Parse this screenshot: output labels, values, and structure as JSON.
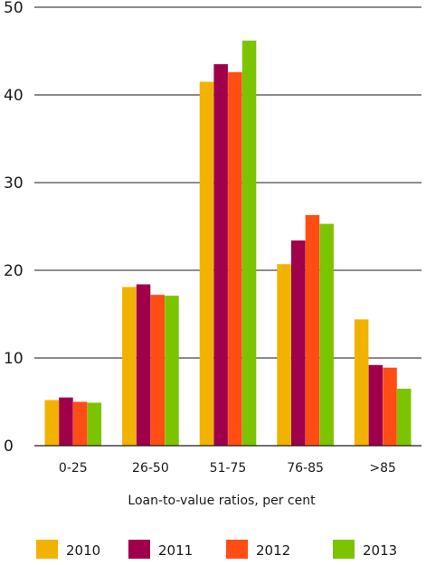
{
  "chart_data": {
    "type": "bar",
    "title": "",
    "xlabel": "Loan-to-value ratios, per cent",
    "ylabel": "",
    "ylim": [
      0,
      50
    ],
    "yticks": [
      0,
      10,
      20,
      30,
      40,
      50
    ],
    "grid": true,
    "legend_position": "bottom",
    "categories": [
      "0-25",
      "26-50",
      "51-75",
      "76-85",
      ">85"
    ],
    "series": [
      {
        "name": "2010",
        "color": "#f2b200",
        "values": [
          5.2,
          18.1,
          41.5,
          20.7,
          14.4
        ]
      },
      {
        "name": "2011",
        "color": "#a0004b",
        "values": [
          5.5,
          18.4,
          43.5,
          23.4,
          9.2
        ]
      },
      {
        "name": "2012",
        "color": "#ff4d14",
        "values": [
          5.0,
          17.2,
          42.6,
          26.3,
          8.9
        ]
      },
      {
        "name": "2013",
        "color": "#7cc400",
        "values": [
          4.9,
          17.1,
          46.2,
          25.3,
          6.5
        ]
      }
    ]
  }
}
